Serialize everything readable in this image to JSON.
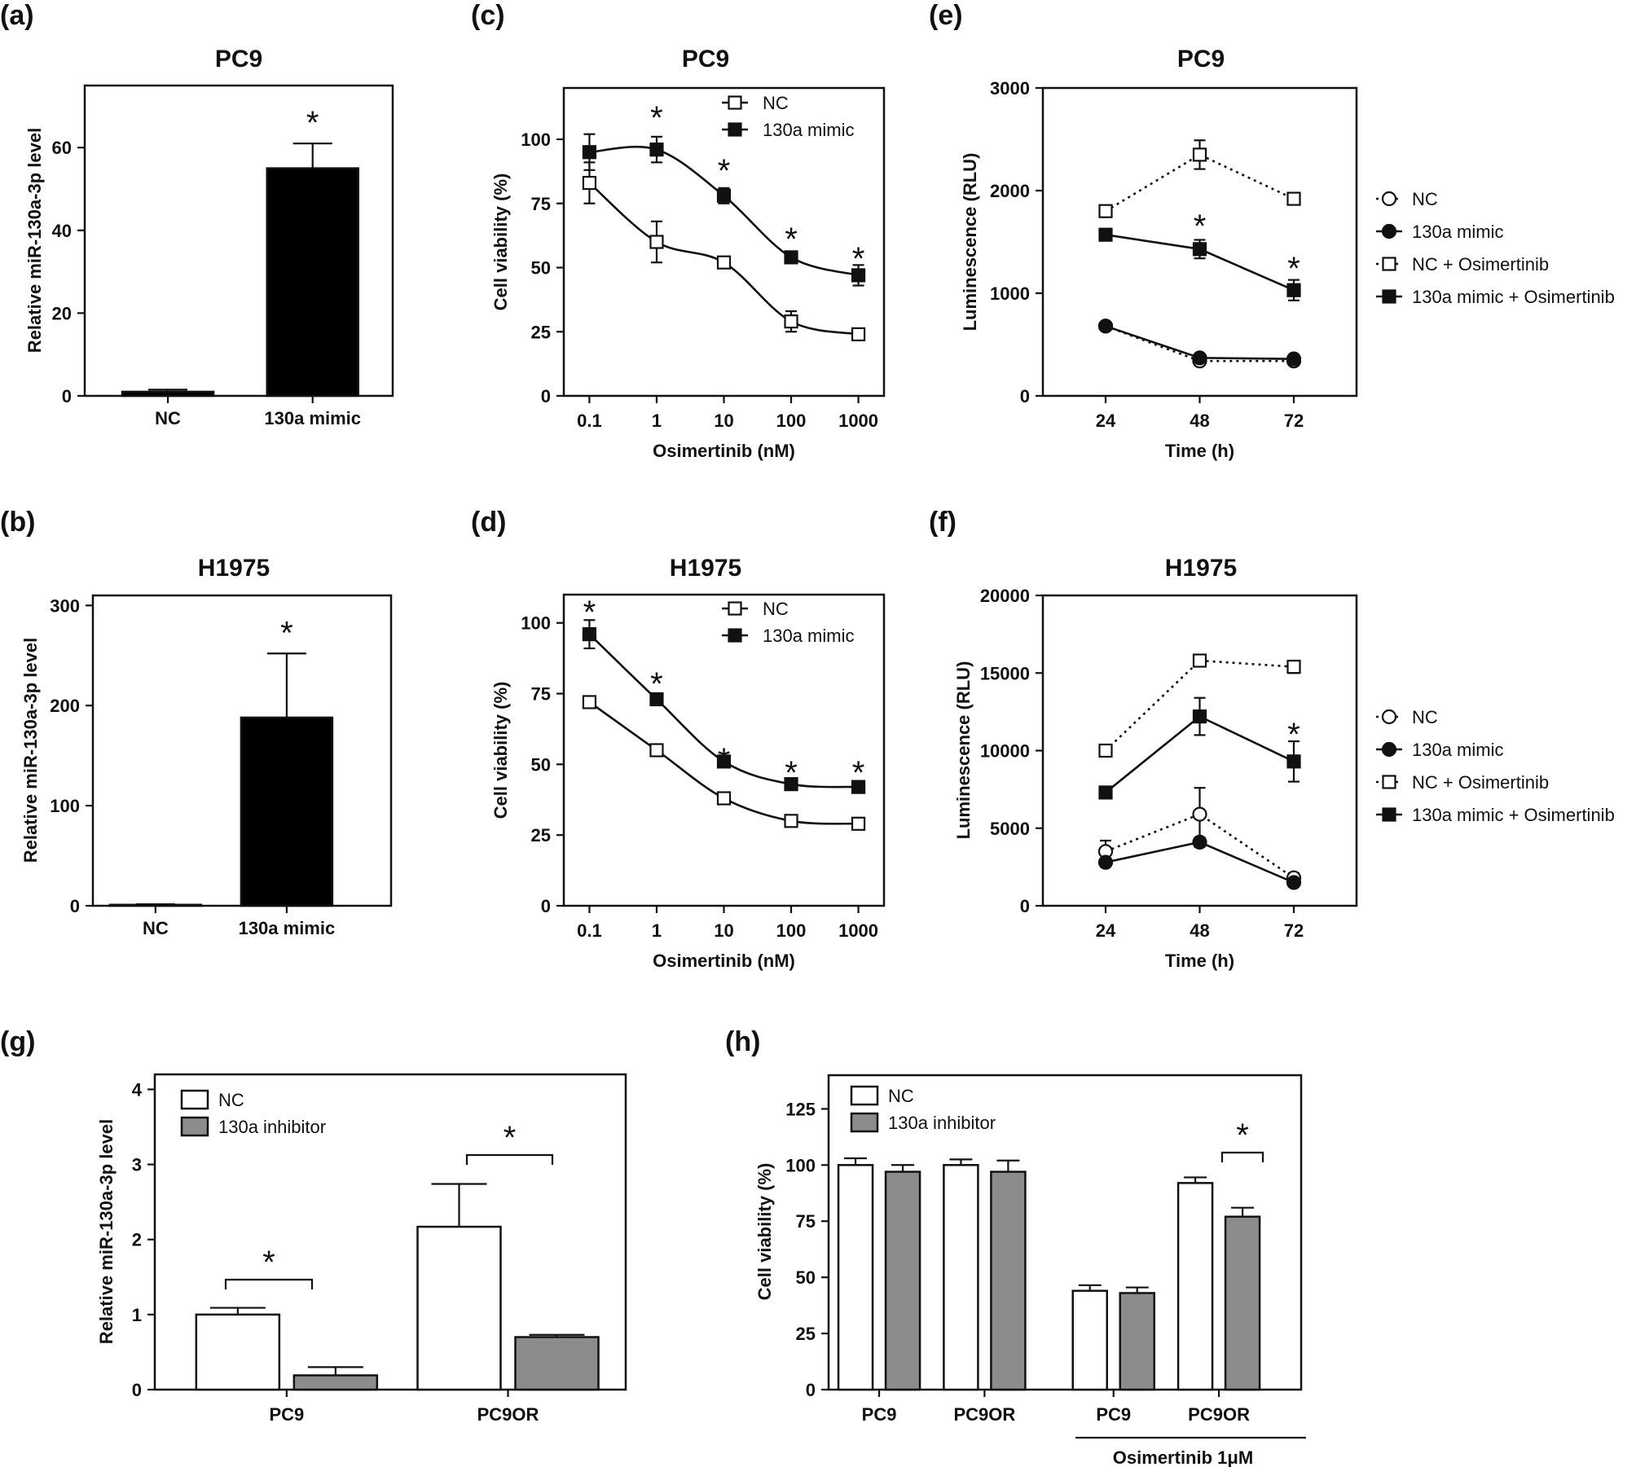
{
  "chart_data": [
    {
      "panel": "(a)",
      "type": "bar",
      "title": "PC9",
      "ylabel": "Relative miR-130a-3p level",
      "xlabel": "",
      "ylim": [
        0,
        75
      ],
      "yticks": [
        0,
        20,
        40,
        60
      ],
      "categories": [
        "NC",
        "130a mimic"
      ],
      "series": [
        {
          "values": [
            1,
            55
          ],
          "errors": [
            0.5,
            6
          ],
          "colors": [
            "#000000",
            "#000000"
          ]
        }
      ],
      "annotations": [
        "*"
      ]
    },
    {
      "panel": "(b)",
      "type": "bar",
      "title": "H1975",
      "ylabel": "Relative miR-130a-3p level",
      "xlabel": "",
      "ylim": [
        0,
        310
      ],
      "yticks": [
        0,
        100,
        200,
        300
      ],
      "categories": [
        "NC",
        "130a mimic"
      ],
      "series": [
        {
          "values": [
            1,
            188
          ],
          "errors": [
            0.5,
            64
          ],
          "colors": [
            "#000000",
            "#000000"
          ]
        }
      ],
      "annotations": [
        "*"
      ]
    },
    {
      "panel": "(c)",
      "type": "line",
      "scale_x": "log",
      "title": "PC9",
      "xlabel": "Osimertinib (nM)",
      "ylabel": "Cell viability (%)",
      "x": [
        0.1,
        1,
        10,
        100,
        1000
      ],
      "xticklabels": [
        "0.1",
        "1",
        "10",
        "100",
        "1000"
      ],
      "ylim": [
        0,
        120
      ],
      "yticks": [
        0,
        25,
        50,
        75,
        100
      ],
      "series": [
        {
          "name": "NC",
          "values": [
            83,
            60,
            52,
            29,
            24
          ],
          "errors": [
            8,
            8,
            2,
            4,
            2
          ],
          "marker": "square-open",
          "line": "solid"
        },
        {
          "name": "130a mimic",
          "values": [
            95,
            96,
            78,
            54,
            47
          ],
          "errors": [
            7,
            5,
            3,
            2,
            4
          ],
          "marker": "square-filled",
          "line": "solid"
        }
      ],
      "annotations": [
        "*",
        "*",
        "*",
        "*"
      ],
      "legend": "top-right"
    },
    {
      "panel": "(d)",
      "type": "line",
      "scale_x": "log",
      "title": "H1975",
      "xlabel": "Osimertinib (nM)",
      "ylabel": "Cell viability (%)",
      "x": [
        0.1,
        1,
        10,
        100,
        1000
      ],
      "xticklabels": [
        "0.1",
        "1",
        "10",
        "100",
        "1000"
      ],
      "ylim": [
        0,
        110
      ],
      "yticks": [
        0,
        25,
        50,
        75,
        100
      ],
      "series": [
        {
          "name": "NC",
          "values": [
            72,
            55,
            38,
            30,
            29
          ],
          "errors": [
            1,
            1,
            1,
            1,
            1
          ],
          "marker": "square-open",
          "line": "solid"
        },
        {
          "name": "130a mimic",
          "values": [
            96,
            73,
            51,
            43,
            42
          ],
          "errors": [
            5,
            1,
            1,
            1,
            1
          ],
          "marker": "square-filled",
          "line": "solid"
        }
      ],
      "annotations": [
        "*",
        "*",
        "*",
        "*",
        "*"
      ],
      "legend": "top-right"
    },
    {
      "panel": "(e)",
      "type": "line",
      "title": "PC9",
      "xlabel": "Time (h)",
      "ylabel": "Luminescence (RLU)",
      "x": [
        24,
        48,
        72
      ],
      "xticklabels": [
        "24",
        "48",
        "72"
      ],
      "ylim": [
        0,
        3000
      ],
      "yticks": [
        0,
        1000,
        2000,
        3000
      ],
      "series": [
        {
          "name": "NC",
          "values": [
            680,
            340,
            340
          ],
          "errors": [
            30,
            30,
            30
          ],
          "marker": "circle-open",
          "line": "dotted"
        },
        {
          "name": "130a mimic",
          "values": [
            680,
            370,
            360
          ],
          "errors": [
            30,
            30,
            30
          ],
          "marker": "circle-filled",
          "line": "solid"
        },
        {
          "name": "NC + Osimertinib",
          "values": [
            1800,
            2350,
            1920
          ],
          "errors": [
            40,
            140,
            50
          ],
          "marker": "square-open",
          "line": "dotted"
        },
        {
          "name": "130a mimic + Osimertinib",
          "values": [
            1570,
            1430,
            1030
          ],
          "errors": [
            40,
            90,
            100
          ],
          "marker": "square-filled",
          "line": "solid"
        }
      ],
      "annotations": [
        "*",
        "*"
      ],
      "legend": "right"
    },
    {
      "panel": "(f)",
      "type": "line",
      "title": "H1975",
      "xlabel": "Time (h)",
      "ylabel": "Luminescence (RLU)",
      "x": [
        24,
        48,
        72
      ],
      "xticklabels": [
        "24",
        "48",
        "72"
      ],
      "ylim": [
        0,
        20000
      ],
      "yticks": [
        0,
        5000,
        10000,
        15000,
        20000
      ],
      "series": [
        {
          "name": "NC",
          "values": [
            3500,
            5900,
            1800
          ],
          "errors": [
            700,
            1700,
            300
          ],
          "marker": "circle-open",
          "line": "dotted"
        },
        {
          "name": "130a mimic",
          "values": [
            2800,
            4100,
            1500
          ],
          "errors": [
            200,
            300,
            200
          ],
          "marker": "circle-filled",
          "line": "solid"
        },
        {
          "name": "NC + Osimertinib",
          "values": [
            10000,
            15800,
            15400
          ],
          "errors": [
            200,
            200,
            400
          ],
          "marker": "square-open",
          "line": "dotted"
        },
        {
          "name": "130a mimic + Osimertinib",
          "values": [
            7300,
            12200,
            9300
          ],
          "errors": [
            200,
            1200,
            1300
          ],
          "marker": "square-filled",
          "line": "solid"
        }
      ],
      "annotations": [
        "*"
      ],
      "legend": "right"
    },
    {
      "panel": "(g)",
      "type": "bar",
      "ylabel": "Relative miR-130a-3p level",
      "xlabel": "",
      "ylim": [
        0,
        4.2
      ],
      "yticks": [
        0,
        1,
        2,
        3,
        4
      ],
      "categories": [
        "PC9",
        "PC9OR"
      ],
      "series": [
        {
          "name": "NC",
          "values": [
            1.0,
            2.17
          ],
          "errors": [
            0.09,
            0.57
          ],
          "color": "#ffffff"
        },
        {
          "name": "130a inhibitor",
          "values": [
            0.19,
            0.7
          ],
          "errors": [
            0.11,
            0.03
          ],
          "color": "#8c8c8c"
        }
      ],
      "annotations": [
        "*",
        "*"
      ],
      "legend": "top-left"
    },
    {
      "panel": "(h)",
      "type": "bar",
      "ylabel": "Cell viability (%)",
      "xlabel": "",
      "ylim": [
        0,
        140
      ],
      "yticks": [
        0,
        25,
        50,
        75,
        100,
        125
      ],
      "categories": [
        "PC9",
        "PC9OR",
        "PC9",
        "PC9OR"
      ],
      "group_label": "Osimertinib 1μM",
      "series": [
        {
          "name": "NC",
          "values": [
            100,
            100,
            44,
            92
          ],
          "errors": [
            3,
            2.5,
            2.5,
            2.5
          ],
          "color": "#ffffff"
        },
        {
          "name": "130a inhibitor",
          "values": [
            97,
            97,
            43,
            77
          ],
          "errors": [
            3,
            5,
            2.5,
            4
          ],
          "color": "#8c8c8c"
        }
      ],
      "annotations": [
        "*"
      ],
      "legend": "top-left"
    }
  ]
}
